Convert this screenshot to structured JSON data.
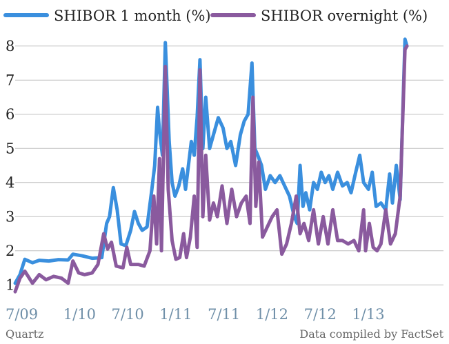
{
  "chart_data": {
    "type": "line",
    "title": "",
    "xlabel": "",
    "ylabel": "",
    "legend_position": "top-left",
    "grid": true,
    "ylim": [
      0.5,
      8.5
    ],
    "yticks": [
      1,
      2,
      3,
      4,
      5,
      6,
      7,
      8
    ],
    "xlim": [
      2009.5,
      2013.95
    ],
    "x_tick_labels": [
      {
        "x": 2009.5,
        "label": "7/09"
      },
      {
        "x": 2010.0,
        "label": "1/10"
      },
      {
        "x": 2010.5,
        "label": "7/10"
      },
      {
        "x": 2011.0,
        "label": "1/11"
      },
      {
        "x": 2011.5,
        "label": "7/11"
      },
      {
        "x": 2012.0,
        "label": "1/12"
      },
      {
        "x": 2012.5,
        "label": "7/12"
      },
      {
        "x": 2013.0,
        "label": "1/13"
      }
    ],
    "series": [
      {
        "name": "SHIBOR 1 month (%)",
        "color": "#3a8fde",
        "points": [
          [
            2009.5,
            1.05
          ],
          [
            2009.55,
            1.3
          ],
          [
            2009.6,
            1.75
          ],
          [
            2009.68,
            1.65
          ],
          [
            2009.75,
            1.72
          ],
          [
            2009.85,
            1.7
          ],
          [
            2009.95,
            1.74
          ],
          [
            2010.05,
            1.73
          ],
          [
            2010.1,
            1.9
          ],
          [
            2010.2,
            1.85
          ],
          [
            2010.3,
            1.78
          ],
          [
            2010.4,
            1.8
          ],
          [
            2010.45,
            2.8
          ],
          [
            2010.48,
            3.0
          ],
          [
            2010.52,
            3.85
          ],
          [
            2010.56,
            3.2
          ],
          [
            2010.6,
            2.2
          ],
          [
            2010.65,
            2.15
          ],
          [
            2010.7,
            2.6
          ],
          [
            2010.74,
            3.15
          ],
          [
            2010.78,
            2.8
          ],
          [
            2010.82,
            2.6
          ],
          [
            2010.87,
            2.7
          ],
          [
            2010.92,
            3.8
          ],
          [
            2010.95,
            4.5
          ],
          [
            2010.98,
            6.2
          ],
          [
            2011.0,
            5.5
          ],
          [
            2011.03,
            4.8
          ],
          [
            2011.06,
            8.1
          ],
          [
            2011.1,
            5.2
          ],
          [
            2011.13,
            4.0
          ],
          [
            2011.16,
            3.6
          ],
          [
            2011.2,
            3.9
          ],
          [
            2011.24,
            4.4
          ],
          [
            2011.27,
            3.8
          ],
          [
            2011.3,
            4.5
          ],
          [
            2011.33,
            5.2
          ],
          [
            2011.36,
            4.8
          ],
          [
            2011.39,
            5.9
          ],
          [
            2011.42,
            7.6
          ],
          [
            2011.45,
            5.0
          ],
          [
            2011.48,
            6.5
          ],
          [
            2011.52,
            5.0
          ],
          [
            2011.56,
            5.4
          ],
          [
            2011.61,
            5.9
          ],
          [
            2011.66,
            5.6
          ],
          [
            2011.7,
            5.0
          ],
          [
            2011.74,
            5.2
          ],
          [
            2011.79,
            4.5
          ],
          [
            2011.84,
            5.4
          ],
          [
            2011.88,
            5.8
          ],
          [
            2011.92,
            6.0
          ],
          [
            2011.96,
            7.5
          ],
          [
            2011.99,
            5.0
          ],
          [
            2012.02,
            4.8
          ],
          [
            2012.06,
            4.5
          ],
          [
            2012.1,
            3.8
          ],
          [
            2012.15,
            4.2
          ],
          [
            2012.2,
            4.0
          ],
          [
            2012.25,
            4.2
          ],
          [
            2012.3,
            3.9
          ],
          [
            2012.35,
            3.6
          ],
          [
            2012.4,
            3.0
          ],
          [
            2012.43,
            2.8
          ],
          [
            2012.46,
            4.5
          ],
          [
            2012.49,
            3.3
          ],
          [
            2012.52,
            3.7
          ],
          [
            2012.56,
            3.2
          ],
          [
            2012.6,
            4.0
          ],
          [
            2012.64,
            3.8
          ],
          [
            2012.68,
            4.3
          ],
          [
            2012.72,
            4.0
          ],
          [
            2012.76,
            4.2
          ],
          [
            2012.8,
            3.8
          ],
          [
            2012.85,
            4.3
          ],
          [
            2012.9,
            3.9
          ],
          [
            2012.95,
            4.0
          ],
          [
            2012.99,
            3.7
          ],
          [
            2013.03,
            4.2
          ],
          [
            2013.08,
            4.8
          ],
          [
            2013.12,
            4.0
          ],
          [
            2013.17,
            3.8
          ],
          [
            2013.21,
            4.3
          ],
          [
            2013.25,
            3.3
          ],
          [
            2013.3,
            3.4
          ],
          [
            2013.35,
            3.2
          ],
          [
            2013.39,
            4.25
          ],
          [
            2013.42,
            3.4
          ],
          [
            2013.46,
            4.5
          ],
          [
            2013.5,
            3.5
          ],
          [
            2013.55,
            8.2
          ],
          [
            2013.57,
            8.0
          ]
        ]
      },
      {
        "name": "SHIBOR overnight (%)",
        "color": "#8a5a9e",
        "points": [
          [
            2009.5,
            0.8
          ],
          [
            2009.55,
            1.2
          ],
          [
            2009.6,
            1.4
          ],
          [
            2009.68,
            1.05
          ],
          [
            2009.75,
            1.3
          ],
          [
            2009.82,
            1.15
          ],
          [
            2009.9,
            1.25
          ],
          [
            2009.98,
            1.2
          ],
          [
            2010.05,
            1.05
          ],
          [
            2010.1,
            1.7
          ],
          [
            2010.16,
            1.35
          ],
          [
            2010.22,
            1.3
          ],
          [
            2010.3,
            1.35
          ],
          [
            2010.36,
            1.6
          ],
          [
            2010.42,
            2.5
          ],
          [
            2010.46,
            2.05
          ],
          [
            2010.5,
            2.25
          ],
          [
            2010.55,
            1.55
          ],
          [
            2010.62,
            1.5
          ],
          [
            2010.66,
            2.1
          ],
          [
            2010.7,
            1.6
          ],
          [
            2010.78,
            1.6
          ],
          [
            2010.84,
            1.55
          ],
          [
            2010.9,
            2.0
          ],
          [
            2010.94,
            3.6
          ],
          [
            2010.97,
            2.2
          ],
          [
            2011.0,
            4.7
          ],
          [
            2011.02,
            2.0
          ],
          [
            2011.06,
            7.4
          ],
          [
            2011.09,
            3.8
          ],
          [
            2011.13,
            2.3
          ],
          [
            2011.17,
            1.75
          ],
          [
            2011.21,
            1.8
          ],
          [
            2011.25,
            2.5
          ],
          [
            2011.28,
            1.8
          ],
          [
            2011.32,
            2.4
          ],
          [
            2011.36,
            3.6
          ],
          [
            2011.39,
            2.1
          ],
          [
            2011.42,
            7.3
          ],
          [
            2011.45,
            3.0
          ],
          [
            2011.48,
            4.8
          ],
          [
            2011.52,
            2.9
          ],
          [
            2011.56,
            3.4
          ],
          [
            2011.6,
            3.0
          ],
          [
            2011.65,
            3.9
          ],
          [
            2011.7,
            2.8
          ],
          [
            2011.75,
            3.8
          ],
          [
            2011.8,
            3.0
          ],
          [
            2011.85,
            3.4
          ],
          [
            2011.9,
            3.6
          ],
          [
            2011.94,
            2.8
          ],
          [
            2011.97,
            6.5
          ],
          [
            2012.0,
            3.3
          ],
          [
            2012.03,
            4.6
          ],
          [
            2012.07,
            2.4
          ],
          [
            2012.12,
            2.7
          ],
          [
            2012.17,
            3.0
          ],
          [
            2012.22,
            3.2
          ],
          [
            2012.27,
            1.9
          ],
          [
            2012.32,
            2.2
          ],
          [
            2012.37,
            2.8
          ],
          [
            2012.42,
            3.6
          ],
          [
            2012.46,
            2.5
          ],
          [
            2012.5,
            2.8
          ],
          [
            2012.55,
            2.3
          ],
          [
            2012.6,
            3.2
          ],
          [
            2012.65,
            2.2
          ],
          [
            2012.7,
            3.0
          ],
          [
            2012.75,
            2.2
          ],
          [
            2012.8,
            3.2
          ],
          [
            2012.85,
            2.3
          ],
          [
            2012.9,
            2.3
          ],
          [
            2012.96,
            2.2
          ],
          [
            2013.02,
            2.3
          ],
          [
            2013.07,
            2.0
          ],
          [
            2013.12,
            3.2
          ],
          [
            2013.14,
            2.0
          ],
          [
            2013.18,
            2.8
          ],
          [
            2013.22,
            2.1
          ],
          [
            2013.26,
            2.0
          ],
          [
            2013.3,
            2.2
          ],
          [
            2013.35,
            3.2
          ],
          [
            2013.4,
            2.2
          ],
          [
            2013.45,
            2.5
          ],
          [
            2013.5,
            3.6
          ],
          [
            2013.55,
            7.9
          ],
          [
            2013.57,
            8.0
          ]
        ]
      }
    ]
  },
  "legend": {
    "items": [
      {
        "label": "SHIBOR 1 month (%)",
        "color": "#3a8fde"
      },
      {
        "label": "SHIBOR overnight (%)",
        "color": "#8a5a9e"
      }
    ]
  },
  "footer": {
    "source_left": "Quartz",
    "source_right": "Data compiled by FactSet"
  }
}
